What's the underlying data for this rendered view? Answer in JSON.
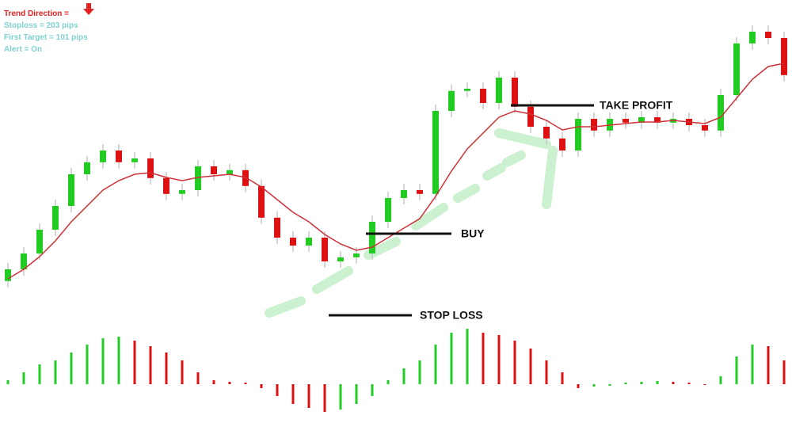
{
  "chart_data": {
    "type": "candlestick",
    "info": [
      "Trend Direction =",
      "Stoploss = 203 pips",
      "First Target = 101 pips",
      "Alert = On"
    ],
    "annotations": [
      "TAKE PROFIT",
      "BUY",
      "STOP LOSS"
    ],
    "up_color": "#22cc22",
    "down_color": "#dd1111",
    "ma_color": "#d0303a",
    "ylim": [
      0,
      100
    ],
    "open": [
      11.3,
      15,
      20,
      27.5,
      35,
      45,
      48.8,
      52.5,
      48.8,
      50,
      43.8,
      38.8,
      40,
      47.5,
      45,
      46.3,
      41.3,
      31.3,
      25,
      22.5,
      25,
      17.5,
      18.8,
      20,
      30,
      37.5,
      40,
      38.8,
      65,
      71.3,
      72,
      67.5,
      75.5,
      66.3,
      60,
      56.3,
      52.5,
      62.5,
      58.8,
      62.5,
      61.3,
      63,
      61.3,
      62.5,
      60.5,
      58.8,
      70,
      86.3,
      90,
      88
    ],
    "high": [
      17,
      22,
      29.5,
      37,
      47,
      50.8,
      54.5,
      54.5,
      52,
      52,
      45.8,
      42,
      49.5,
      49.5,
      48.3,
      48.3,
      43.3,
      33.3,
      27,
      27,
      27,
      20.8,
      22,
      32,
      39.5,
      42,
      42,
      67,
      73.3,
      74,
      74,
      77.5,
      77.5,
      68.3,
      62,
      58.3,
      64.5,
      64.5,
      64.5,
      64.5,
      65,
      65,
      64.5,
      64.5,
      62.5,
      72,
      88.3,
      92,
      92,
      90
    ],
    "low": [
      9.3,
      13,
      18,
      25.5,
      33,
      43,
      46.8,
      46.8,
      46.8,
      41.8,
      36.8,
      36.8,
      38,
      43,
      43,
      39.3,
      29.3,
      23,
      20.5,
      20.5,
      15.5,
      15.5,
      16.8,
      18,
      28,
      35.5,
      36.8,
      36.8,
      63,
      69.3,
      65.5,
      65.5,
      64.3,
      58,
      54.3,
      50.5,
      50.5,
      56.8,
      56.8,
      59.3,
      59.3,
      59.3,
      59.3,
      58.5,
      56.8,
      56.8,
      68,
      84.3,
      86,
      74.3
    ],
    "close": [
      15,
      20,
      27.5,
      35,
      45,
      48.8,
      52.5,
      48.8,
      50,
      43.8,
      38.8,
      40,
      47.5,
      45,
      46.3,
      41.3,
      31.3,
      25,
      22.5,
      25,
      17.5,
      18.8,
      20,
      30,
      37.5,
      40,
      38.8,
      65,
      71.3,
      72,
      67.5,
      75.5,
      66.3,
      60,
      56.3,
      52.5,
      62.5,
      58.8,
      62.5,
      61.3,
      63,
      61.3,
      62.5,
      60.5,
      58.8,
      70,
      86.3,
      90,
      88,
      76.3
    ],
    "ma": [
      12,
      15,
      19,
      24,
      30,
      35,
      40,
      43,
      45,
      45.5,
      44,
      43,
      44,
      44.5,
      45,
      44,
      41,
      37,
      33,
      30,
      26,
      23,
      21,
      22,
      25,
      28,
      31,
      38,
      46,
      53,
      58,
      63,
      65,
      64,
      62,
      59,
      60,
      60,
      60.5,
      61,
      61.5,
      61.5,
      62,
      61.5,
      61,
      63,
      69,
      75,
      79,
      80
    ],
    "hlim": [
      -40,
      70
    ],
    "histogram": [
      5,
      15,
      25,
      30,
      40,
      50,
      58,
      60,
      55,
      48,
      40,
      30,
      15,
      5,
      3,
      2,
      -5,
      -15,
      -25,
      -30,
      -35,
      -32,
      -25,
      -15,
      5,
      20,
      30,
      50,
      65,
      70,
      65,
      62,
      55,
      45,
      30,
      15,
      -5,
      -3,
      -2,
      2,
      3,
      4,
      3,
      2,
      0,
      10,
      35,
      50,
      48,
      30
    ]
  }
}
